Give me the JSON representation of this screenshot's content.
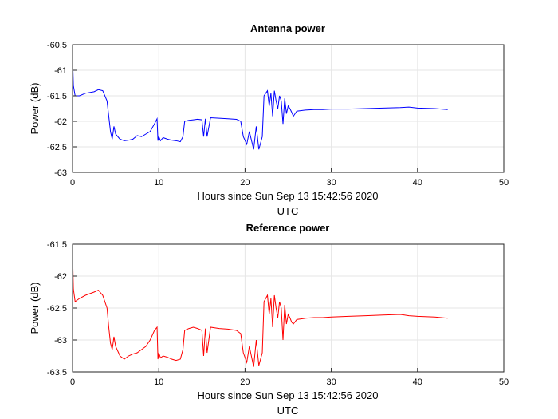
{
  "chart_data": [
    {
      "type": "line",
      "title": "Antenna power",
      "xlabel": "Hours since Sun Sep 13 15:42:56 2020",
      "xlabel2": "UTC",
      "ylabel": "Power (dB)",
      "xlim": [
        0,
        50
      ],
      "ylim": [
        -63,
        -60.5
      ],
      "xticks": [
        0,
        10,
        20,
        30,
        40,
        50
      ],
      "yticks": [
        -63,
        -62.5,
        -62,
        -61.5,
        -61,
        -60.5
      ],
      "grid": true,
      "series": [
        {
          "color": "#0000ff",
          "x": [
            0,
            0.1,
            0.3,
            0.8,
            1.5,
            2.5,
            3.0,
            3.5,
            4.0,
            4.2,
            4.4,
            4.6,
            4.8,
            5.0,
            5.5,
            6.0,
            6.5,
            7.0,
            7.5,
            8.0,
            8.5,
            9.0,
            9.5,
            9.8,
            9.9,
            10.0,
            10.2,
            10.5,
            11.0,
            11.5,
            12.0,
            12.5,
            12.8,
            13.0,
            13.5,
            14.0,
            14.5,
            15.0,
            15.2,
            15.4,
            15.6,
            16.0,
            17.0,
            18.0,
            19.0,
            19.5,
            19.8,
            20.2,
            20.5,
            21.0,
            21.3,
            21.6,
            22.0,
            22.2,
            22.4,
            22.6,
            22.8,
            23.0,
            23.2,
            23.4,
            23.6,
            23.8,
            24.0,
            24.2,
            24.4,
            24.6,
            24.8,
            25.0,
            25.2,
            25.4,
            25.6,
            26.0,
            27.0,
            28.0,
            29.0,
            30.0,
            32.0,
            34.0,
            36.0,
            38.0,
            39.0,
            40.0,
            42.0,
            43.5
          ],
          "y": [
            -60.7,
            -61.3,
            -61.5,
            -61.5,
            -61.45,
            -61.42,
            -61.38,
            -61.4,
            -61.6,
            -61.9,
            -62.2,
            -62.35,
            -62.1,
            -62.25,
            -62.35,
            -62.38,
            -62.37,
            -62.35,
            -62.28,
            -62.3,
            -62.25,
            -62.2,
            -62.05,
            -61.95,
            -62.38,
            -62.3,
            -62.38,
            -62.32,
            -62.35,
            -62.37,
            -62.38,
            -62.4,
            -62.3,
            -62.0,
            -61.98,
            -61.97,
            -61.96,
            -61.97,
            -62.3,
            -61.95,
            -62.3,
            -61.93,
            -61.94,
            -61.95,
            -61.96,
            -62.0,
            -62.3,
            -62.45,
            -62.2,
            -62.55,
            -62.1,
            -62.55,
            -62.3,
            -61.5,
            -61.45,
            -61.4,
            -61.7,
            -61.45,
            -61.9,
            -61.4,
            -61.6,
            -61.75,
            -61.5,
            -61.6,
            -62.05,
            -61.55,
            -61.85,
            -61.7,
            -61.75,
            -61.82,
            -61.9,
            -61.8,
            -61.78,
            -61.77,
            -61.77,
            -61.76,
            -61.76,
            -61.75,
            -61.74,
            -61.73,
            -61.72,
            -61.74,
            -61.75,
            -61.77
          ]
        }
      ]
    },
    {
      "type": "line",
      "title": "Reference power",
      "xlabel": "Hours since Sun Sep 13 15:42:56 2020",
      "xlabel2": "UTC",
      "ylabel": "Power (dB)",
      "xlim": [
        0,
        50
      ],
      "ylim": [
        -63.5,
        -61.5
      ],
      "xticks": [
        0,
        10,
        20,
        30,
        40,
        50
      ],
      "yticks": [
        -63.5,
        -63,
        -62.5,
        -62,
        -61.5
      ],
      "grid": true,
      "series": [
        {
          "color": "#ff0000",
          "x": [
            0,
            0.1,
            0.3,
            0.8,
            1.5,
            2.5,
            3.0,
            3.5,
            4.0,
            4.2,
            4.4,
            4.6,
            4.8,
            5.0,
            5.5,
            6.0,
            6.5,
            7.0,
            7.5,
            8.0,
            8.5,
            9.0,
            9.5,
            9.8,
            9.9,
            10.0,
            10.2,
            10.5,
            11.0,
            11.5,
            12.0,
            12.5,
            12.8,
            13.0,
            13.5,
            14.0,
            14.5,
            15.0,
            15.2,
            15.4,
            15.6,
            16.0,
            17.0,
            18.0,
            19.0,
            19.5,
            19.8,
            20.2,
            20.5,
            21.0,
            21.3,
            21.6,
            22.0,
            22.2,
            22.4,
            22.6,
            22.8,
            23.0,
            23.2,
            23.4,
            23.6,
            23.8,
            24.0,
            24.2,
            24.4,
            24.6,
            24.8,
            25.0,
            25.2,
            25.4,
            25.6,
            26.0,
            27.0,
            28.0,
            29.0,
            30.0,
            32.0,
            34.0,
            36.0,
            38.0,
            39.0,
            40.0,
            42.0,
            43.5
          ],
          "y": [
            -61.6,
            -62.2,
            -62.4,
            -62.35,
            -62.3,
            -62.25,
            -62.22,
            -62.3,
            -62.5,
            -62.8,
            -63.05,
            -63.15,
            -62.95,
            -63.1,
            -63.25,
            -63.3,
            -63.25,
            -63.22,
            -63.2,
            -63.15,
            -63.1,
            -63.0,
            -62.85,
            -62.8,
            -63.3,
            -63.2,
            -63.28,
            -63.25,
            -63.27,
            -63.3,
            -63.32,
            -63.3,
            -63.15,
            -62.85,
            -62.82,
            -62.8,
            -62.82,
            -62.85,
            -63.25,
            -62.82,
            -63.2,
            -62.8,
            -62.82,
            -62.83,
            -62.85,
            -62.9,
            -63.2,
            -63.35,
            -63.1,
            -63.42,
            -63.0,
            -63.4,
            -63.2,
            -62.4,
            -62.35,
            -62.3,
            -62.6,
            -62.35,
            -62.8,
            -62.3,
            -62.5,
            -62.65,
            -62.4,
            -62.5,
            -63.0,
            -62.45,
            -62.75,
            -62.6,
            -62.65,
            -62.72,
            -62.75,
            -62.68,
            -62.66,
            -62.65,
            -62.65,
            -62.64,
            -62.63,
            -62.62,
            -62.61,
            -62.6,
            -62.62,
            -62.63,
            -62.64,
            -62.66
          ]
        }
      ]
    }
  ]
}
